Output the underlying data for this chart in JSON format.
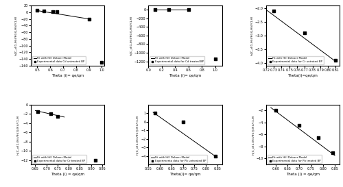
{
  "subplots": [
    {
      "xlabel": "Theta (i)= qe/qm",
      "ylabel": "ln[C_d(1-θ(i)/θ(i)]-θ(i)/(1-θ)",
      "legend": [
        "Experimental data Cd untreated BP",
        "Fit with Hill Deboer Model"
      ],
      "scatter_x": [
        0.5,
        0.55,
        0.62,
        0.65,
        0.9,
        1.0
      ],
      "scatter_y": [
        5,
        3,
        2,
        1,
        -20,
        -150
      ],
      "line_x": [
        0.5,
        0.9
      ],
      "line_y": [
        5,
        -20
      ],
      "xlim": [
        0.45,
        1.02
      ],
      "ylim": [
        -160,
        20
      ],
      "yticks": [
        20,
        0,
        -20,
        -40,
        -60,
        -80,
        -100,
        -120,
        -140,
        -160
      ],
      "xticks": [
        0.5,
        0.6,
        0.7,
        0.8,
        0.9,
        1.0
      ]
    },
    {
      "xlabel": "Theta (i)= qe/qm",
      "ylabel": "ln[C_d(1-θ(i)/θ(i)]-θ(i)/(1-θ)",
      "legend": [
        "Experimental data for Cd treated BP",
        "Fit with Hill Deboer Model"
      ],
      "scatter_x": [
        0.1,
        0.3,
        0.6,
        1.0
      ],
      "scatter_y": [
        0,
        0,
        0,
        -1150
      ],
      "line_x": [
        0.1,
        0.6
      ],
      "line_y": [
        0,
        0
      ],
      "xlim": [
        0.0,
        1.1
      ],
      "ylim": [
        -1300,
        100
      ],
      "yticks": [
        0,
        -200,
        -400,
        -600,
        -800,
        -1000,
        -1200
      ],
      "xticks": [
        0.0,
        0.2,
        0.4,
        0.6,
        0.8,
        1.0
      ]
    },
    {
      "xlabel": "Theta(i)=qe/qm",
      "ylabel": "ln[C_d(1-θ(i)/θ(i)]-θ(i)/(1-θ)",
      "legend": [
        "Experimental data for Cr untrated BP",
        "Fit with Hill Deboer Model"
      ],
      "scatter_x": [
        0.73,
        0.77,
        0.81
      ],
      "scatter_y": [
        -2.1,
        -2.9,
        -3.9
      ],
      "line_x": [
        0.72,
        0.81
      ],
      "line_y": [
        -2.05,
        -3.95
      ],
      "xlim": [
        0.72,
        0.815
      ],
      "ylim": [
        -4.1,
        -1.9
      ],
      "yticks": [
        -2.0,
        -2.5,
        -3.0,
        -3.5,
        -4.0
      ],
      "xticks": [
        0.72,
        0.73,
        0.74,
        0.75,
        0.76,
        0.77,
        0.78,
        0.79,
        0.8,
        0.81
      ]
    },
    {
      "xlabel": "Theta (i) = qe/qm",
      "ylabel": "ln[C_d(1-θ(i)/θ(i)]-θ(i)/(1-θ)",
      "legend": [
        "Experimental data for Cr treated BP",
        "Fit with Hill Deboer Model"
      ],
      "scatter_x": [
        0.66,
        0.72,
        0.75,
        0.92
      ],
      "scatter_y": [
        -1.5,
        -2.0,
        -2.5,
        -12.0
      ],
      "line_x": [
        0.65,
        0.78
      ],
      "line_y": [
        -1.3,
        -2.7
      ],
      "xlim": [
        0.63,
        0.96
      ],
      "ylim": [
        -13,
        0
      ],
      "yticks": [
        0,
        -2,
        -4,
        -6,
        -8,
        -10,
        -12
      ],
      "xticks": [
        0.65,
        0.7,
        0.75,
        0.8,
        0.85,
        0.9,
        0.95
      ]
    },
    {
      "xlabel": "Theta(i)= qe/qm",
      "ylabel": "ln[C_d(1-θ(i)/θ(i)]-θ(i)/(1-θ)",
      "legend": [
        "Experimenta data for Pb untreated BP",
        "Fit with Hill Deboer Model"
      ],
      "scatter_x": [
        0.58,
        0.7,
        0.84
      ],
      "scatter_y": [
        1.0,
        0.0,
        -4.0
      ],
      "line_x": [
        0.57,
        0.85
      ],
      "line_y": [
        1.1,
        -4.2
      ],
      "xlim": [
        0.55,
        0.87
      ],
      "ylim": [
        -5,
        2
      ],
      "yticks": [
        1,
        0,
        -1,
        -2,
        -3,
        -4
      ],
      "xticks": [
        0.55,
        0.6,
        0.65,
        0.7,
        0.75,
        0.8,
        0.85
      ]
    },
    {
      "xlabel": "Theta (i) = qe/qm",
      "ylabel": "ln[C_d(1-θ(i)/θ(i)]-θ(i)/(1-θ)",
      "legend": [
        "Experimental data for Pb treated BP",
        "Fit with Hill Deboer Model"
      ],
      "scatter_x": [
        0.6,
        0.7,
        0.78,
        0.84
      ],
      "scatter_y": [
        -2.0,
        -4.5,
        -6.5,
        -9.0
      ],
      "line_x": [
        0.58,
        0.85
      ],
      "line_y": [
        -1.5,
        -9.5
      ],
      "xlim": [
        0.56,
        0.87
      ],
      "ylim": [
        -11,
        -1
      ],
      "yticks": [
        -2,
        -4,
        -6,
        -8,
        -10
      ],
      "xticks": [
        0.6,
        0.65,
        0.7,
        0.75,
        0.8,
        0.85
      ]
    }
  ]
}
